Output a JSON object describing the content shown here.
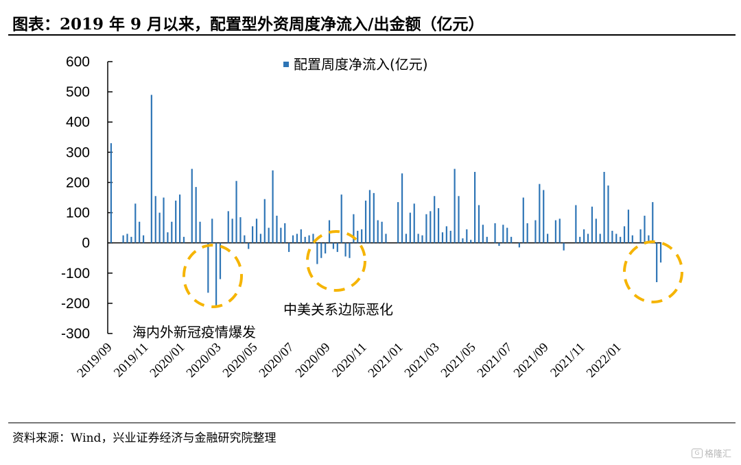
{
  "title": "图表：2019 年 9 月以来，配置型外资周度净流入/出金额（亿元）",
  "source": "资料来源：Wind，兴业证券经济与金融研究院整理",
  "watermark": "格隆汇",
  "watermark_icon": "g-logo-icon",
  "colors": {
    "bar": "#2e75b6",
    "highlight": "#f5b400",
    "axis": "#000000"
  },
  "chart_data": {
    "type": "bar",
    "title": "",
    "legend": "配置周度净流入(亿元)",
    "legend_position": "top-center",
    "ylim": [
      -300,
      600
    ],
    "yticks": [
      600,
      500,
      400,
      300,
      200,
      100,
      0,
      -100,
      -200,
      -300
    ],
    "xtick_labels": [
      "2019/09",
      "2019/11",
      "2020/01",
      "2020/03",
      "2020/05",
      "2020/07",
      "2020/09",
      "2020/11",
      "2021/01",
      "2021/03",
      "2021/05",
      "2021/07",
      "2021/09",
      "2021/11",
      "2022/01"
    ],
    "xtick_every": 9,
    "values": [
      330,
      0,
      0,
      25,
      30,
      20,
      130,
      70,
      25,
      0,
      490,
      155,
      100,
      150,
      35,
      70,
      140,
      160,
      20,
      0,
      245,
      185,
      70,
      0,
      -165,
      80,
      -215,
      -120,
      0,
      105,
      80,
      205,
      85,
      25,
      -20,
      55,
      80,
      30,
      145,
      50,
      240,
      90,
      50,
      65,
      -30,
      25,
      30,
      45,
      20,
      25,
      30,
      -70,
      -50,
      -35,
      75,
      -20,
      -30,
      160,
      -45,
      -50,
      95,
      40,
      45,
      140,
      175,
      165,
      75,
      70,
      30,
      0,
      0,
      135,
      230,
      30,
      100,
      130,
      30,
      25,
      95,
      105,
      155,
      115,
      35,
      55,
      40,
      245,
      155,
      15,
      45,
      10,
      235,
      125,
      60,
      20,
      0,
      65,
      -10,
      60,
      50,
      20,
      0,
      -15,
      150,
      65,
      0,
      75,
      195,
      175,
      30,
      0,
      75,
      80,
      -25,
      0,
      0,
      125,
      20,
      45,
      30,
      120,
      80,
      30,
      235,
      190,
      40,
      30,
      20,
      55,
      110,
      25,
      0,
      45,
      90,
      25,
      135,
      -130,
      -65
    ],
    "annotations": [
      "海内外新冠疫情爆发",
      "中美关系边际恶化"
    ]
  }
}
